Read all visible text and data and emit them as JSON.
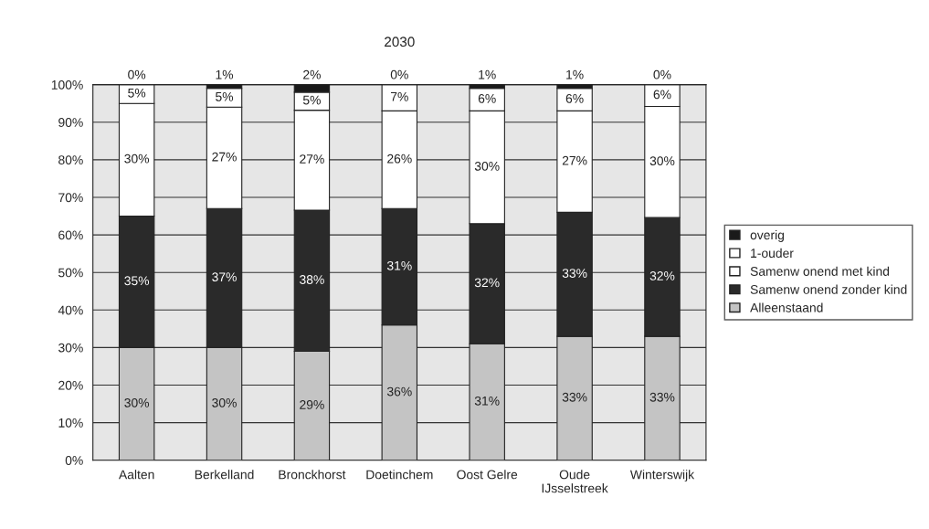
{
  "chart_data": {
    "type": "bar",
    "title": "2030",
    "stacked": true,
    "categories": [
      "Aalten",
      "Berkelland",
      "Bronckhorst",
      "Doetinchem",
      "Oost Gelre",
      "Oude\nIJsselstreek",
      "Winterswijk"
    ],
    "series": [
      {
        "name": "Alleenstaand",
        "color": "#c4c4c4",
        "values": [
          30,
          30,
          29,
          36,
          31,
          33,
          33
        ],
        "value_labels": [
          "30%",
          "30%",
          "29%",
          "36%",
          "31%",
          "33%",
          "33%"
        ]
      },
      {
        "name": "Samenw onend zonder kind",
        "color": "#2a2a2a",
        "values": [
          35,
          37,
          37.6,
          31,
          32,
          33,
          31.6
        ],
        "value_labels": [
          "35%",
          "37%",
          "38%",
          "31%",
          "32%",
          "33%",
          "32%"
        ]
      },
      {
        "name": "Samenw onend met kind",
        "color": "#ffffff",
        "values": [
          30,
          27,
          26.6,
          26,
          30,
          27,
          29.6
        ],
        "value_labels": [
          "30%",
          "27%",
          "27%",
          "26%",
          "30%",
          "27%",
          "30%"
        ]
      },
      {
        "name": "1-ouder",
        "color": "#ffffff",
        "values": [
          5,
          5,
          4.8,
          7,
          6,
          6,
          5.8
        ],
        "value_labels": [
          "5%",
          "5%",
          "5%",
          "7%",
          "6%",
          "6%",
          "6%"
        ]
      },
      {
        "name": "overig",
        "color": "#1a1a1a",
        "values": [
          0,
          1,
          2,
          0,
          1,
          1,
          0
        ],
        "value_labels": [
          "0%",
          "1%",
          "2%",
          "0%",
          "1%",
          "1%",
          "0%"
        ]
      }
    ],
    "ylim": [
      0,
      100
    ],
    "yticks": [
      {
        "value": 0,
        "label": "0%"
      },
      {
        "value": 10,
        "label": "10%"
      },
      {
        "value": 20,
        "label": "20%"
      },
      {
        "value": 30,
        "label": "30%"
      },
      {
        "value": 40,
        "label": "40%"
      },
      {
        "value": 50,
        "label": "50%"
      },
      {
        "value": 60,
        "label": "60%"
      },
      {
        "value": 70,
        "label": "70%"
      },
      {
        "value": 80,
        "label": "80%"
      },
      {
        "value": 90,
        "label": "90%"
      },
      {
        "value": 100,
        "label": "100%"
      }
    ],
    "grid": "y",
    "legend": "right"
  }
}
